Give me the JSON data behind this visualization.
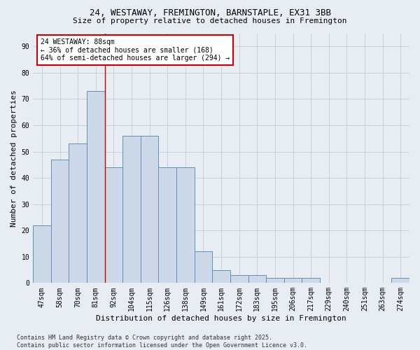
{
  "title_line1": "24, WESTAWAY, FREMINGTON, BARNSTAPLE, EX31 3BB",
  "title_line2": "Size of property relative to detached houses in Fremington",
  "xlabel": "Distribution of detached houses by size in Fremington",
  "ylabel": "Number of detached properties",
  "categories": [
    "47sqm",
    "58sqm",
    "70sqm",
    "81sqm",
    "92sqm",
    "104sqm",
    "115sqm",
    "126sqm",
    "138sqm",
    "149sqm",
    "161sqm",
    "172sqm",
    "183sqm",
    "195sqm",
    "206sqm",
    "217sqm",
    "229sqm",
    "240sqm",
    "251sqm",
    "263sqm",
    "274sqm"
  ],
  "values": [
    22,
    47,
    53,
    73,
    44,
    56,
    56,
    44,
    44,
    12,
    5,
    3,
    3,
    2,
    2,
    2,
    0,
    0,
    0,
    0,
    2
  ],
  "bar_color": "#cdd8e8",
  "bar_edge_color": "#6090b8",
  "grid_color": "#c8d0dc",
  "annotation_text": "24 WESTAWAY: 88sqm\n← 36% of detached houses are smaller (168)\n64% of semi-detached houses are larger (294) →",
  "annotation_box_color": "#ffffff",
  "annotation_box_edge": "#cc0000",
  "vline_color": "#cc0000",
  "vline_x": 3.5,
  "ylim": [
    0,
    95
  ],
  "yticks": [
    0,
    10,
    20,
    30,
    40,
    50,
    60,
    70,
    80,
    90
  ],
  "footer_line1": "Contains HM Land Registry data © Crown copyright and database right 2025.",
  "footer_line2": "Contains public sector information licensed under the Open Government Licence v3.0.",
  "bg_color": "#e8edf4",
  "title_fontsize": 9,
  "subtitle_fontsize": 8,
  "tick_fontsize": 7,
  "label_fontsize": 8,
  "annotation_fontsize": 7,
  "footer_fontsize": 6
}
